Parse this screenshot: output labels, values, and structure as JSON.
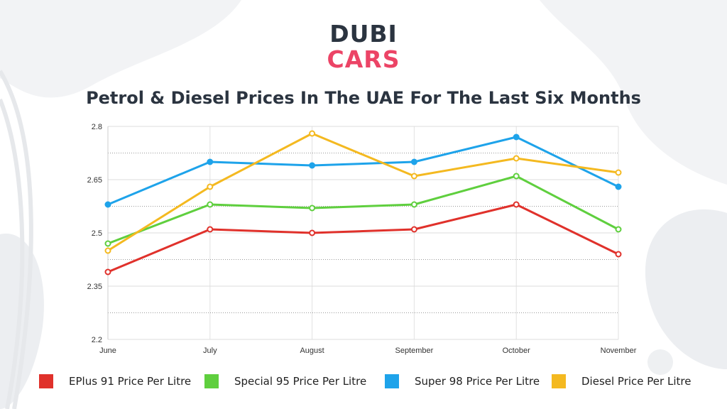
{
  "logo": {
    "line1": "DUBI",
    "line2": "CARS"
  },
  "chart_data": {
    "type": "line",
    "title": "Petrol & Diesel Prices In The UAE For The Last Six Months",
    "xlabel": "",
    "ylabel": "",
    "categories": [
      "June",
      "July",
      "August",
      "September",
      "October",
      "November"
    ],
    "ylim": [
      2.2,
      2.8
    ],
    "yticks": [
      "2.2",
      "2.35",
      "2.5",
      "2.65",
      "2.8"
    ],
    "grid": true,
    "legend_position": "bottom",
    "series": [
      {
        "name": "EPlus 91 Price Per Litre",
        "color": "#e0312b",
        "values": [
          2.39,
          2.51,
          2.5,
          2.51,
          2.58,
          2.44
        ]
      },
      {
        "name": "Special 95 Price Per Litre",
        "color": "#5fcf3e",
        "values": [
          2.47,
          2.58,
          2.57,
          2.58,
          2.66,
          2.51
        ]
      },
      {
        "name": "Super 98 Price Per Litre",
        "color": "#1ea3ea",
        "values": [
          2.58,
          2.7,
          2.69,
          2.7,
          2.77,
          2.63
        ]
      },
      {
        "name": "Diesel Price Per Litre",
        "color": "#f4b920",
        "values": [
          2.45,
          2.63,
          2.78,
          2.66,
          2.71,
          2.67
        ]
      }
    ]
  }
}
